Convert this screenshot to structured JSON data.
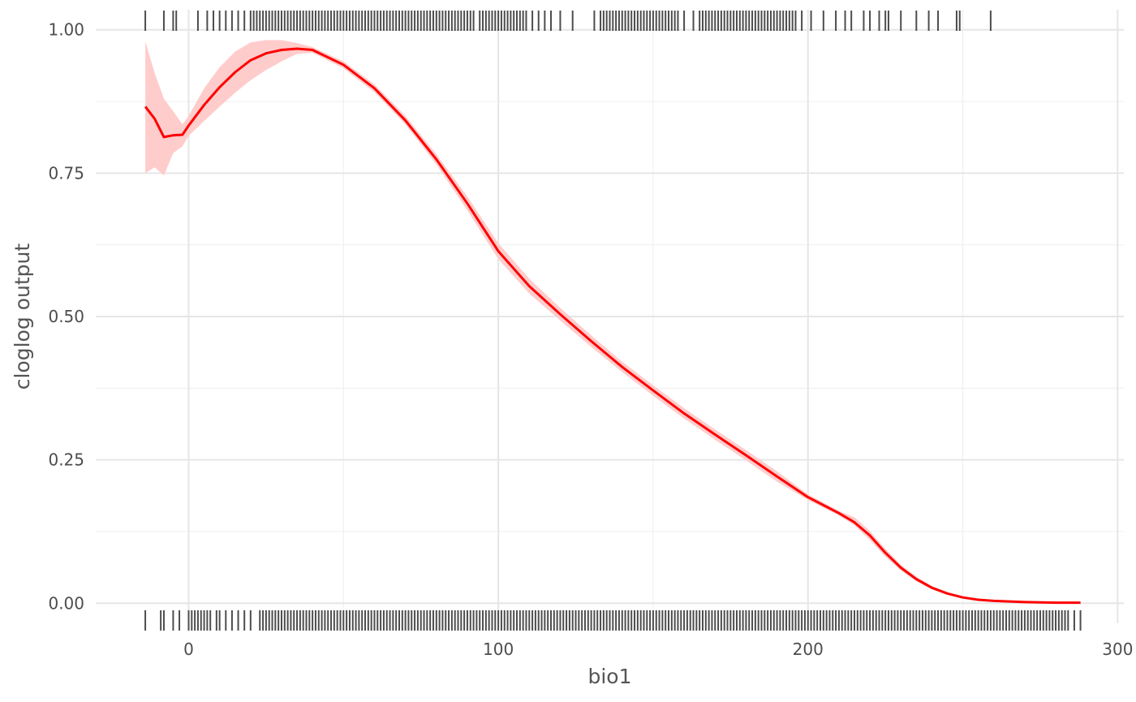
{
  "chart_data": {
    "type": "line",
    "title": "",
    "xlabel": "bio1",
    "ylabel": "cloglog output",
    "xlim": [
      -30,
      302
    ],
    "ylim": [
      -0.035,
      1.035
    ],
    "x_ticks": [
      0,
      100,
      200,
      300
    ],
    "x_tick_labels": [
      "0",
      "100",
      "200",
      "300"
    ],
    "y_ticks": [
      0,
      0.25,
      0.5,
      0.75,
      1.0
    ],
    "y_tick_labels": [
      "0.00",
      "0.25",
      "0.50",
      "0.75",
      "1.00"
    ],
    "grid": true,
    "line_color": "#ff0000",
    "ribbon_color": "#ffcccc",
    "rug_color": "#4d4d4d",
    "series": [
      {
        "x": [
          -14,
          -11,
          -8,
          -5,
          -2,
          0,
          5,
          10,
          15,
          20,
          25,
          30,
          35,
          40,
          50,
          60,
          70,
          80,
          90,
          100,
          110,
          120,
          130,
          140,
          150,
          160,
          170,
          180,
          190,
          200,
          210,
          215,
          220,
          225,
          230,
          235,
          240,
          245,
          250,
          255,
          260,
          270,
          280,
          288
        ],
        "y": [
          0.866,
          0.845,
          0.813,
          0.816,
          0.817,
          0.833,
          0.869,
          0.9,
          0.926,
          0.947,
          0.959,
          0.965,
          0.967,
          0.965,
          0.939,
          0.898,
          0.842,
          0.774,
          0.697,
          0.614,
          0.553,
          0.504,
          0.457,
          0.412,
          0.371,
          0.331,
          0.294,
          0.258,
          0.221,
          0.185,
          0.157,
          0.141,
          0.118,
          0.088,
          0.062,
          0.042,
          0.027,
          0.017,
          0.01,
          0.006,
          0.004,
          0.002,
          0.001,
          0.001
        ],
        "lower": [
          0.75,
          0.76,
          0.746,
          0.785,
          0.797,
          0.815,
          0.841,
          0.866,
          0.89,
          0.912,
          0.93,
          0.945,
          0.958,
          0.96,
          0.933,
          0.891,
          0.835,
          0.765,
          0.685,
          0.6,
          0.54,
          0.493,
          0.447,
          0.403,
          0.362,
          0.322,
          0.285,
          0.249,
          0.212,
          0.18,
          0.153,
          0.136,
          0.11,
          0.081,
          0.057,
          0.038,
          0.024,
          0.015,
          0.009,
          0.005,
          0.003,
          0.001,
          0.0005,
          0.0005
        ],
        "upper": [
          0.98,
          0.925,
          0.88,
          0.858,
          0.835,
          0.85,
          0.898,
          0.935,
          0.962,
          0.978,
          0.982,
          0.982,
          0.977,
          0.97,
          0.945,
          0.905,
          0.85,
          0.783,
          0.709,
          0.628,
          0.566,
          0.515,
          0.467,
          0.421,
          0.38,
          0.34,
          0.303,
          0.267,
          0.23,
          0.19,
          0.161,
          0.15,
          0.126,
          0.095,
          0.067,
          0.046,
          0.03,
          0.019,
          0.011,
          0.007,
          0.005,
          0.003,
          0.002,
          0.002
        ]
      }
    ],
    "rug_presence": [
      -14,
      -8,
      -5,
      -4,
      3,
      6,
      8,
      10,
      12,
      14,
      16,
      18,
      20,
      21,
      22,
      23,
      24,
      25,
      26,
      27,
      28,
      29,
      30,
      31,
      32,
      33,
      34,
      35,
      36,
      37,
      38,
      39,
      40,
      41,
      42,
      43,
      44,
      45,
      46,
      47,
      48,
      49,
      50,
      51,
      52,
      53,
      54,
      55,
      56,
      57,
      58,
      59,
      60,
      61,
      62,
      63,
      64,
      65,
      66,
      67,
      68,
      69,
      70,
      71,
      72,
      73,
      74,
      75,
      76,
      77,
      78,
      79,
      80,
      81,
      82,
      83,
      84,
      85,
      86,
      87,
      88,
      89,
      90,
      91,
      92,
      94,
      95,
      96,
      97,
      98,
      99,
      100,
      101,
      102,
      103,
      104,
      105,
      106,
      107,
      108,
      109,
      111,
      113,
      115,
      117,
      120,
      124,
      131,
      133,
      134,
      135,
      136,
      137,
      138,
      139,
      140,
      141,
      142,
      143,
      144,
      145,
      146,
      147,
      148,
      149,
      150,
      151,
      152,
      153,
      154,
      155,
      156,
      157,
      158,
      160,
      163,
      165,
      166,
      167,
      168,
      169,
      170,
      171,
      172,
      173,
      174,
      175,
      176,
      177,
      178,
      179,
      180,
      181,
      182,
      183,
      184,
      185,
      186,
      187,
      188,
      189,
      190,
      191,
      192,
      193,
      194,
      195,
      196,
      198,
      201,
      205,
      209,
      212,
      214,
      218,
      220,
      223,
      225,
      226,
      230,
      235,
      239,
      242,
      248,
      249,
      259
    ],
    "rug_background": [
      -14,
      -9,
      -8,
      -5,
      -3,
      0,
      1,
      2,
      3,
      4,
      5,
      6,
      7,
      9,
      10,
      12,
      14,
      16,
      18,
      20,
      23,
      24,
      25,
      26,
      27,
      28,
      29,
      30,
      31,
      32,
      33,
      34,
      35,
      36,
      37,
      38,
      39,
      40,
      41,
      42,
      43,
      44,
      45,
      46,
      47,
      48,
      49,
      50,
      51,
      52,
      53,
      54,
      55,
      56,
      57,
      58,
      59,
      60,
      61,
      62,
      63,
      64,
      65,
      66,
      67,
      68,
      69,
      70,
      71,
      72,
      73,
      74,
      75,
      76,
      77,
      78,
      79,
      80,
      81,
      82,
      83,
      84,
      85,
      86,
      87,
      88,
      89,
      90,
      91,
      92,
      93,
      94,
      95,
      96,
      97,
      98,
      99,
      100,
      101,
      102,
      103,
      104,
      105,
      106,
      107,
      108,
      109,
      110,
      111,
      112,
      113,
      114,
      115,
      116,
      117,
      118,
      119,
      120,
      121,
      122,
      123,
      124,
      125,
      126,
      127,
      128,
      129,
      130,
      131,
      132,
      133,
      134,
      135,
      136,
      137,
      138,
      139,
      140,
      141,
      142,
      143,
      144,
      145,
      146,
      147,
      148,
      149,
      150,
      151,
      152,
      153,
      154,
      155,
      156,
      157,
      158,
      159,
      160,
      161,
      162,
      163,
      164,
      165,
      166,
      167,
      168,
      169,
      170,
      171,
      172,
      173,
      174,
      175,
      176,
      177,
      178,
      179,
      180,
      181,
      182,
      183,
      184,
      185,
      186,
      187,
      188,
      189,
      190,
      191,
      192,
      193,
      194,
      195,
      196,
      197,
      198,
      199,
      200,
      201,
      202,
      203,
      204,
      205,
      206,
      207,
      208,
      209,
      210,
      211,
      212,
      213,
      214,
      215,
      216,
      217,
      218,
      219,
      220,
      221,
      222,
      223,
      224,
      225,
      226,
      227,
      228,
      229,
      230,
      231,
      232,
      233,
      234,
      235,
      236,
      237,
      238,
      239,
      240,
      241,
      242,
      243,
      244,
      245,
      246,
      247,
      248,
      249,
      250,
      251,
      252,
      253,
      254,
      255,
      256,
      257,
      258,
      259,
      260,
      261,
      262,
      263,
      264,
      265,
      266,
      267,
      268,
      269,
      270,
      271,
      272,
      273,
      274,
      275,
      276,
      277,
      278,
      279,
      280,
      281,
      282,
      283,
      284,
      286,
      288
    ]
  }
}
